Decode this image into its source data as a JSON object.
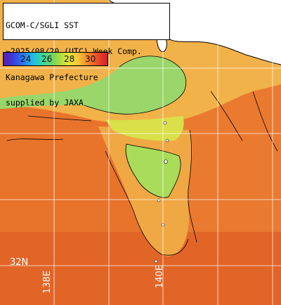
{
  "title": {
    "line1": "GCOM-C/SGLI SST",
    "line2": "~2025/08/20 (UTC) Week Comp.",
    "line3": "Kanagawa Prefecture",
    "line4": "supplied by JAXA"
  },
  "legend": {
    "ticks": [
      "24",
      "26",
      "28",
      "30"
    ],
    "colors": [
      "#5a1fa8",
      "#2a70ee",
      "#32d6a8",
      "#a8dc42",
      "#f5c43a",
      "#ef5a2a",
      "#d21f2a"
    ]
  },
  "grid_labels": {
    "lat_32": "32N",
    "lon_138": "138E",
    "lon_140": "140E"
  },
  "colors": {
    "land": "#ffffff",
    "warm_sea": "#e8742c",
    "mid_sea": "#f2b24a",
    "cool_sea": "#9ad66a",
    "cold_sea": "#35b6c8",
    "grid": "#ffffff",
    "coast": "#000000"
  }
}
